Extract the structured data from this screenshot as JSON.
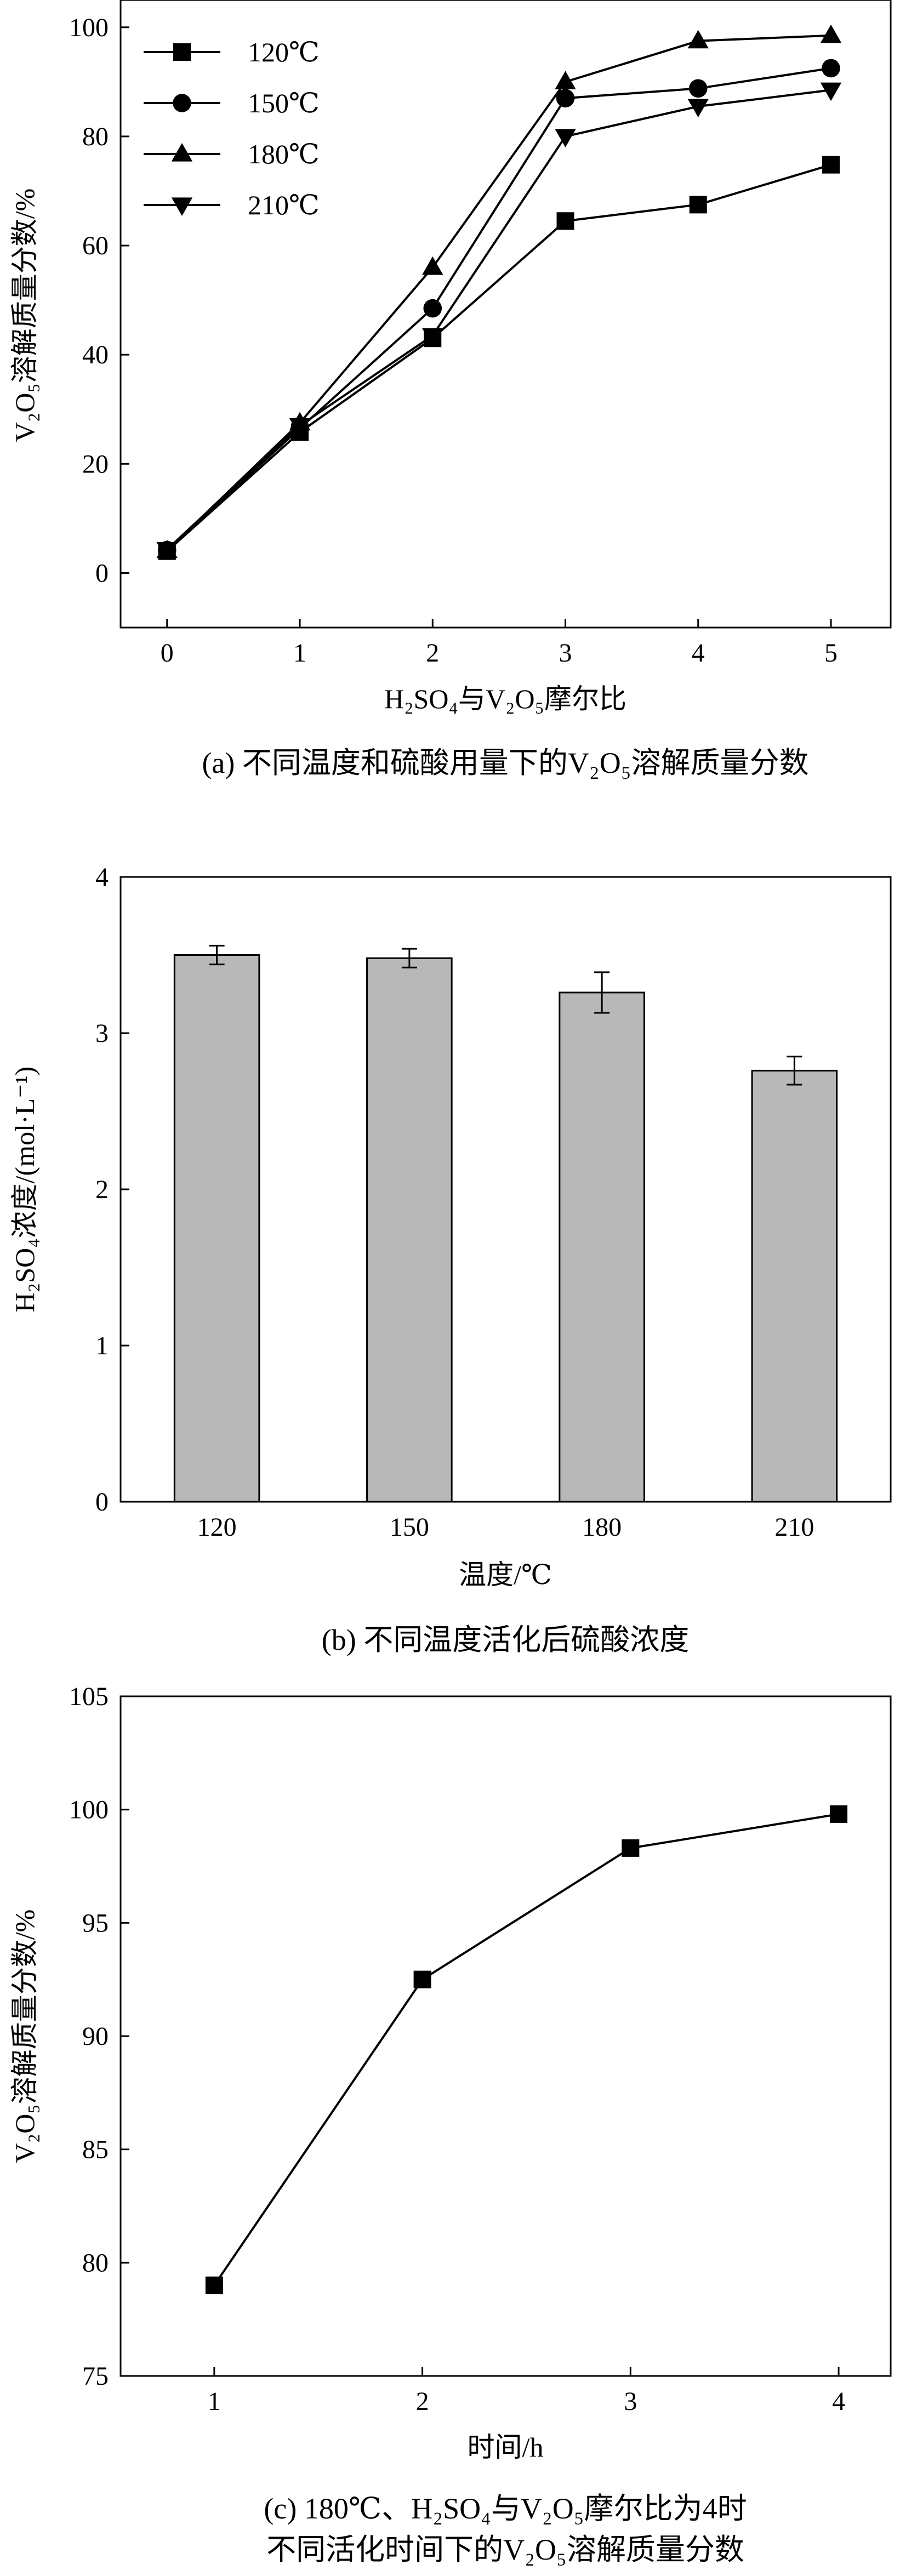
{
  "panels": [
    {
      "id": "a",
      "caption": "(a) 不同温度和硫酸用量下的V₂O₅溶解质量分数",
      "xlabel": "H₂SO₄与V₂O₅摩尔比",
      "ylabel": "V₂O₅溶解质量分数/%",
      "chart_data": {
        "type": "line",
        "x": [
          0,
          1,
          2,
          3,
          4,
          5
        ],
        "xticks": [
          "0",
          "1",
          "2",
          "3",
          "4",
          "5"
        ],
        "yticks": [
          "0",
          "20",
          "40",
          "60",
          "80",
          "100"
        ],
        "xlim": [
          -0.35,
          5.45
        ],
        "ylim": [
          -10,
          105
        ],
        "legend_position": "top-left",
        "series": [
          {
            "name": "120℃",
            "marker": "square",
            "values": [
              4,
              25.8,
              43,
              64.5,
              67.5,
              74.8
            ]
          },
          {
            "name": "150℃",
            "marker": "circle",
            "values": [
              4.2,
              26.5,
              48.5,
              87,
              88.8,
              92.5
            ]
          },
          {
            "name": "180℃",
            "marker": "triangle-up",
            "values": [
              4.1,
              27.5,
              56,
              90,
              97.5,
              98.5
            ]
          },
          {
            "name": "210℃",
            "marker": "triangle-down",
            "values": [
              4.3,
              27,
              43.5,
              80,
              85.5,
              88.5
            ]
          }
        ]
      }
    },
    {
      "id": "b",
      "caption": "(b) 不同温度活化后硫酸浓度",
      "xlabel": "温度/℃",
      "ylabel": "H₂SO₄浓度/(mol·L⁻¹)",
      "chart_data": {
        "type": "bar",
        "categories": [
          "120",
          "150",
          "180",
          "210"
        ],
        "values": [
          3.5,
          3.48,
          3.26,
          2.76
        ],
        "errors": [
          0.06,
          0.06,
          0.13,
          0.09
        ],
        "yticks": [
          "0",
          "1",
          "2",
          "3",
          "4"
        ],
        "ylim": [
          0,
          4
        ]
      }
    },
    {
      "id": "c",
      "caption_line1": "(c) 180℃、H₂SO₄与V₂O₅摩尔比为4时",
      "caption_line2": "不同活化时间下的V₂O₅溶解质量分数",
      "xlabel": "时间/h",
      "ylabel": "V₂O₅溶解质量分数/%",
      "chart_data": {
        "type": "line",
        "x": [
          1,
          2,
          3,
          4
        ],
        "xticks": [
          "1",
          "2",
          "3",
          "4"
        ],
        "yticks": [
          "75",
          "80",
          "85",
          "90",
          "95",
          "100",
          "105"
        ],
        "xlim": [
          0.55,
          4.25
        ],
        "ylim": [
          75,
          105
        ],
        "series": [
          {
            "marker": "square",
            "values": [
              79,
              92.5,
              98.3,
              99.8
            ]
          }
        ]
      }
    }
  ]
}
